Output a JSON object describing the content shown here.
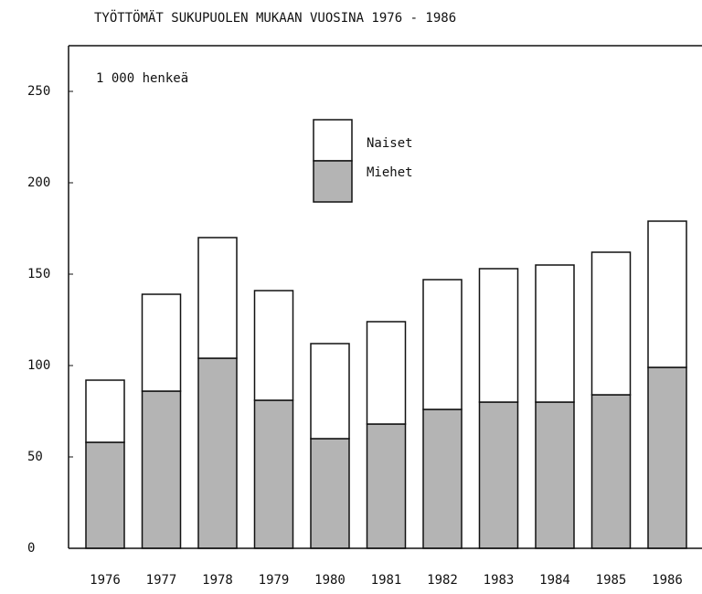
{
  "chart_data": {
    "type": "stacked_bar",
    "title": "TYÖTTÖMÄT SUKUPUOLEN MUKAAN VUOSINA 1976 - 1986",
    "annotation": "1 000 henkeä",
    "categories": [
      "1976",
      "1977",
      "1978",
      "1979",
      "1980",
      "1981",
      "1982",
      "1983",
      "1984",
      "1985",
      "1986"
    ],
    "series": [
      {
        "name": "Miehet",
        "color": "#b4b4b4",
        "values": [
          58,
          86,
          104,
          81,
          60,
          68,
          76,
          80,
          80,
          84,
          99
        ]
      },
      {
        "name": "Naiset",
        "color": "#ffffff",
        "values": [
          34,
          53,
          66,
          60,
          52,
          56,
          71,
          73,
          75,
          78,
          80
        ]
      }
    ],
    "ylim": [
      0,
      250
    ],
    "yticks": [
      0,
      50,
      100,
      150,
      200,
      250
    ],
    "grid": false
  }
}
